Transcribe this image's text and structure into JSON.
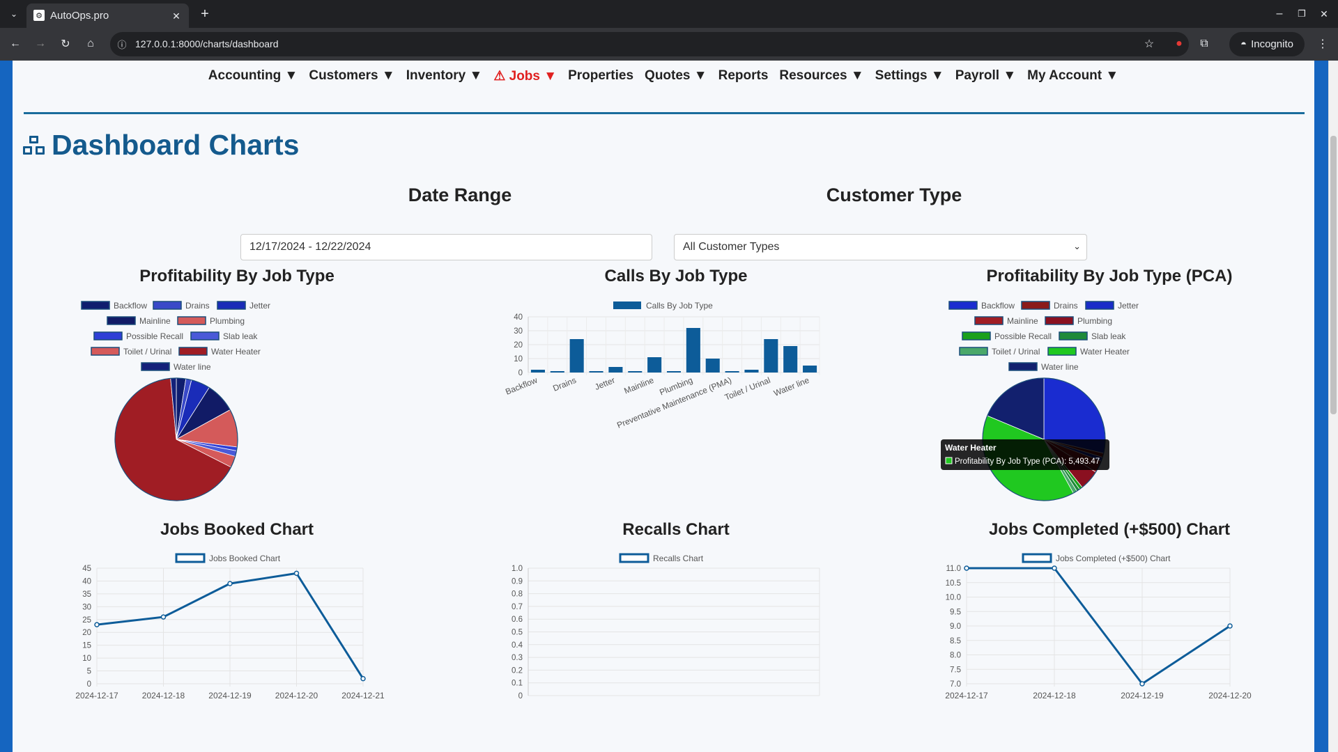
{
  "browser": {
    "tab_title": "AutoOps.pro",
    "url": "127.0.0.1:8000/charts/dashboard",
    "incognito_label": "Incognito"
  },
  "nav": [
    "Accounting ▼",
    "Customers ▼",
    "Inventory ▼",
    "⚠ Jobs ▼",
    "Properties",
    "Quotes ▼",
    "Reports",
    "Resources ▼",
    "Settings ▼",
    "Payroll ▼",
    "My Account ▼"
  ],
  "page": {
    "title": "Dashboard Charts",
    "date_range_label": "Date Range",
    "customer_type_label": "Customer Type",
    "date_value": "12/17/2024 - 12/22/2024",
    "customer_type_value": "All Customer Types"
  },
  "colors": {
    "accent": "#145a8d",
    "nav_alert": "#e02020",
    "bar": "#0d5c99"
  },
  "chart_data": [
    {
      "type": "pie",
      "title": "Profitability By Job Type",
      "categories": [
        "Backflow",
        "Drains",
        "Jetter",
        "Mainline",
        "Plumbing",
        "Possible Recall",
        "Slab leak",
        "Toilet / Urinal",
        "Water Heater",
        "Water line"
      ],
      "colors": [
        "#0f1d6e",
        "#3949c8",
        "#1a2cb8",
        "#111b66",
        "#d45a5a",
        "#2f3fd6",
        "#4a5ad8",
        "#d55a5a",
        "#a01d24",
        "#14217a"
      ],
      "values": [
        2.5,
        1.5,
        5,
        8,
        10,
        1,
        1.5,
        3,
        66,
        1.5
      ]
    },
    {
      "type": "bar",
      "title": "Calls By Job Type",
      "legend": "Calls By Job Type",
      "tick_labels": [
        "Backflow",
        "Drains",
        "Jetter",
        "Mainline",
        "Plumbing",
        "Preventative Maintenance (PMA)",
        "Toilet / Urinal",
        "Water line"
      ],
      "values": [
        2,
        1,
        24,
        1,
        4,
        1,
        11,
        1,
        32,
        10,
        1,
        2,
        24,
        19,
        5
      ],
      "ylim": [
        0,
        40
      ],
      "yticks": [
        0,
        10,
        20,
        30,
        40
      ]
    },
    {
      "type": "pie",
      "title": "Profitability By Job Type (PCA)",
      "categories": [
        "Backflow",
        "Drains",
        "Jetter",
        "Mainline",
        "Plumbing",
        "Possible Recall",
        "Slab leak",
        "Toilet / Urinal",
        "Water Heater",
        "Water line"
      ],
      "colors": [
        "#1a2cd0",
        "#8b1a1a",
        "#1a2cc8",
        "#a01d24",
        "#8a1020",
        "#1ba01b",
        "#1f8a3a",
        "#4aa86a",
        "#20c820",
        "#12206e"
      ],
      "values": [
        27,
        1,
        1,
        3,
        5,
        0.8,
        0.8,
        1,
        37,
        17.6
      ],
      "tooltip": {
        "title": "Water Heater",
        "text": "Profitability By Job Type (PCA): 5,493.47"
      }
    },
    {
      "type": "line",
      "title": "Jobs Booked Chart",
      "legend": "Jobs Booked Chart",
      "x": [
        "2024-12-17",
        "2024-12-18",
        "2024-12-19",
        "2024-12-20",
        "2024-12-21"
      ],
      "values": [
        23,
        26,
        39,
        43,
        2
      ],
      "ylim": [
        0,
        45
      ],
      "yticks": [
        0,
        5,
        10,
        15,
        20,
        25,
        30,
        35,
        40,
        45
      ]
    },
    {
      "type": "line",
      "title": "Recalls Chart",
      "legend": "Recalls Chart",
      "x": [],
      "values": [],
      "ylim": [
        0,
        1
      ],
      "yticks": [
        "0",
        "0.1",
        "0.2",
        "0.3",
        "0.4",
        "0.5",
        "0.6",
        "0.7",
        "0.8",
        "0.9",
        "1.0"
      ]
    },
    {
      "type": "line",
      "title": "Jobs Completed (+$500) Chart",
      "legend": "Jobs Completed (+$500) Chart",
      "x": [
        "2024-12-17",
        "2024-12-18",
        "2024-12-19",
        "2024-12-20"
      ],
      "values": [
        11,
        11,
        7,
        9
      ],
      "ylim": [
        7,
        11
      ],
      "yticks": [
        "7.0",
        "7.5",
        "8.0",
        "8.5",
        "9.0",
        "9.5",
        "10.0",
        "10.5",
        "11.0"
      ]
    }
  ]
}
